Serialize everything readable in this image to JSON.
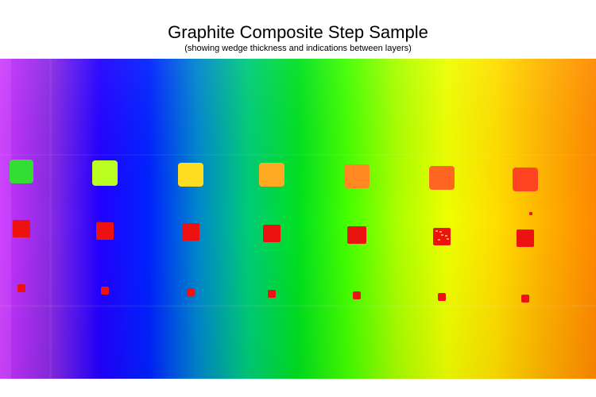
{
  "header": {
    "title": "Graphite Composite Step Sample",
    "subtitle": "(showing wedge thickness and indications between layers)"
  },
  "scan": {
    "gradient_colors": [
      "#cc33ff",
      "#8a2be2",
      "#2200ff",
      "#0022ff",
      "#0088cc",
      "#00cc77",
      "#00e020",
      "#44ff00",
      "#aaff00",
      "#eeff00",
      "#ffdd00",
      "#ffb000",
      "#ff8800"
    ],
    "marker_colors": {
      "large": [
        "#33dd33",
        "#bbff22",
        "#ffdd22",
        "#ffaa22",
        "#ff8822",
        "#ff6622",
        "#ff4422"
      ],
      "medium": "#ee1111",
      "small": "#ee1111"
    }
  }
}
